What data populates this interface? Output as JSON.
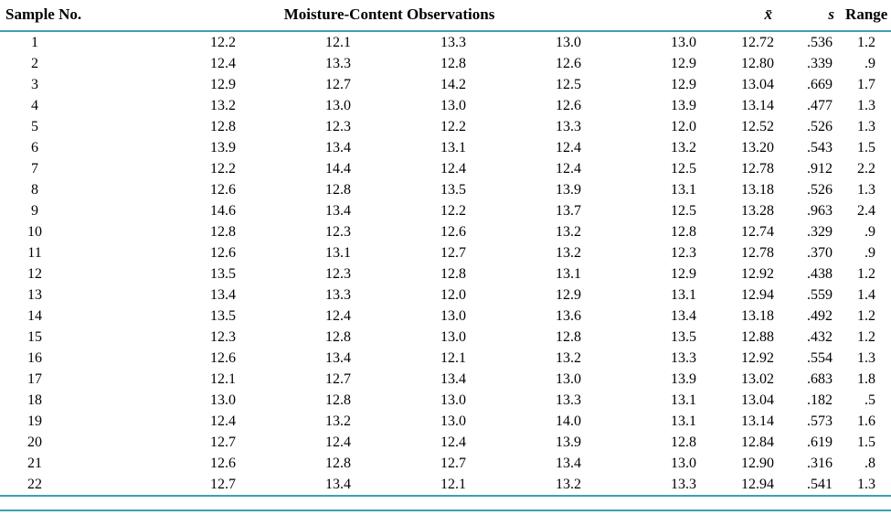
{
  "table": {
    "rule_color": "#3da0b2",
    "headers": {
      "sample_no": "Sample No.",
      "observations": "Moisture-Content Observations",
      "mean": "x̄",
      "s": "s",
      "range": "Range"
    },
    "rows": [
      {
        "sample": "1",
        "obs": [
          "12.2",
          "12.1",
          "13.3",
          "13.0",
          "13.0"
        ],
        "mean": "12.72",
        "s": ".536",
        "range": "1.2"
      },
      {
        "sample": "2",
        "obs": [
          "12.4",
          "13.3",
          "12.8",
          "12.6",
          "12.9"
        ],
        "mean": "12.80",
        "s": ".339",
        "range": ".9"
      },
      {
        "sample": "3",
        "obs": [
          "12.9",
          "12.7",
          "14.2",
          "12.5",
          "12.9"
        ],
        "mean": "13.04",
        "s": ".669",
        "range": "1.7"
      },
      {
        "sample": "4",
        "obs": [
          "13.2",
          "13.0",
          "13.0",
          "12.6",
          "13.9"
        ],
        "mean": "13.14",
        "s": ".477",
        "range": "1.3"
      },
      {
        "sample": "5",
        "obs": [
          "12.8",
          "12.3",
          "12.2",
          "13.3",
          "12.0"
        ],
        "mean": "12.52",
        "s": ".526",
        "range": "1.3"
      },
      {
        "sample": "6",
        "obs": [
          "13.9",
          "13.4",
          "13.1",
          "12.4",
          "13.2"
        ],
        "mean": "13.20",
        "s": ".543",
        "range": "1.5"
      },
      {
        "sample": "7",
        "obs": [
          "12.2",
          "14.4",
          "12.4",
          "12.4",
          "12.5"
        ],
        "mean": "12.78",
        "s": ".912",
        "range": "2.2"
      },
      {
        "sample": "8",
        "obs": [
          "12.6",
          "12.8",
          "13.5",
          "13.9",
          "13.1"
        ],
        "mean": "13.18",
        "s": ".526",
        "range": "1.3"
      },
      {
        "sample": "9",
        "obs": [
          "14.6",
          "13.4",
          "12.2",
          "13.7",
          "12.5"
        ],
        "mean": "13.28",
        "s": ".963",
        "range": "2.4"
      },
      {
        "sample": "10",
        "obs": [
          "12.8",
          "12.3",
          "12.6",
          "13.2",
          "12.8"
        ],
        "mean": "12.74",
        "s": ".329",
        "range": ".9"
      },
      {
        "sample": "11",
        "obs": [
          "12.6",
          "13.1",
          "12.7",
          "13.2",
          "12.3"
        ],
        "mean": "12.78",
        "s": ".370",
        "range": ".9"
      },
      {
        "sample": "12",
        "obs": [
          "13.5",
          "12.3",
          "12.8",
          "13.1",
          "12.9"
        ],
        "mean": "12.92",
        "s": ".438",
        "range": "1.2"
      },
      {
        "sample": "13",
        "obs": [
          "13.4",
          "13.3",
          "12.0",
          "12.9",
          "13.1"
        ],
        "mean": "12.94",
        "s": ".559",
        "range": "1.4"
      },
      {
        "sample": "14",
        "obs": [
          "13.5",
          "12.4",
          "13.0",
          "13.6",
          "13.4"
        ],
        "mean": "13.18",
        "s": ".492",
        "range": "1.2"
      },
      {
        "sample": "15",
        "obs": [
          "12.3",
          "12.8",
          "13.0",
          "12.8",
          "13.5"
        ],
        "mean": "12.88",
        "s": ".432",
        "range": "1.2"
      },
      {
        "sample": "16",
        "obs": [
          "12.6",
          "13.4",
          "12.1",
          "13.2",
          "13.3"
        ],
        "mean": "12.92",
        "s": ".554",
        "range": "1.3"
      },
      {
        "sample": "17",
        "obs": [
          "12.1",
          "12.7",
          "13.4",
          "13.0",
          "13.9"
        ],
        "mean": "13.02",
        "s": ".683",
        "range": "1.8"
      },
      {
        "sample": "18",
        "obs": [
          "13.0",
          "12.8",
          "13.0",
          "13.3",
          "13.1"
        ],
        "mean": "13.04",
        "s": ".182",
        "range": ".5"
      },
      {
        "sample": "19",
        "obs": [
          "12.4",
          "13.2",
          "13.0",
          "14.0",
          "13.1"
        ],
        "mean": "13.14",
        "s": ".573",
        "range": "1.6"
      },
      {
        "sample": "20",
        "obs": [
          "12.7",
          "12.4",
          "12.4",
          "13.9",
          "12.8"
        ],
        "mean": "12.84",
        "s": ".619",
        "range": "1.5"
      },
      {
        "sample": "21",
        "obs": [
          "12.6",
          "12.8",
          "12.7",
          "13.4",
          "13.0"
        ],
        "mean": "12.90",
        "s": ".316",
        "range": ".8"
      },
      {
        "sample": "22",
        "obs": [
          "12.7",
          "13.4",
          "12.1",
          "13.2",
          "13.3"
        ],
        "mean": "12.94",
        "s": ".541",
        "range": "1.3"
      }
    ]
  }
}
